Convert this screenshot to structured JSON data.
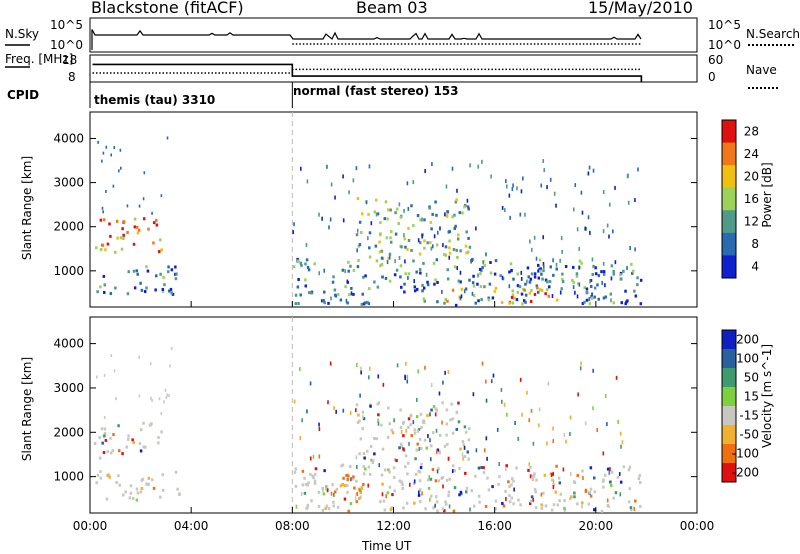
{
  "header": {
    "station": "Blackstone (fitACF)",
    "beam": "Beam 03",
    "date": "15/May/2010"
  },
  "chart_data": [
    {
      "type": "line",
      "name": "nsky-nsearch-panel",
      "labels_left": [
        "N.Sky"
      ],
      "labels_right": [
        "N.Search"
      ],
      "yticks": [
        "10^5",
        "10^0"
      ],
      "series": [
        {
          "name": "N.Sky",
          "style": "solid"
        },
        {
          "name": "N.Search",
          "style": "dotted"
        }
      ]
    },
    {
      "type": "line",
      "name": "freq-nave-panel",
      "ylabel": "Freq. [MHz]",
      "y2label": "Nave",
      "yticks_left": [
        "18",
        "8"
      ],
      "yticks_right": [
        "60",
        "0"
      ],
      "series": [
        {
          "name": "Freq",
          "style": "solid",
          "x": [
            0.1,
            8.0,
            8.0,
            21.8
          ],
          "y": [
            14.5,
            14.5,
            10.2,
            10.2
          ]
        },
        {
          "name": "Nave",
          "style": "dotted",
          "x": [
            0.1,
            8.0,
            8.0,
            21.8
          ],
          "y": [
            20,
            20,
            28,
            28
          ]
        }
      ]
    },
    {
      "type": "table",
      "name": "cpid-panel",
      "label": "CPID",
      "segments": [
        {
          "text": "themis (tau) 3310",
          "start": 0,
          "end": 8
        },
        {
          "text": "normal (fast stereo) 153",
          "start": 8,
          "end": 24
        }
      ]
    },
    {
      "type": "heatmap",
      "name": "power-panel",
      "ylabel": "Slant Range [km]",
      "yticks": [
        1000,
        2000,
        3000,
        4000
      ],
      "ylim": [
        180,
        4600
      ],
      "colorbar": {
        "label": "Power [dB]",
        "ticks": [
          "4",
          "8",
          "12",
          "16",
          "20",
          "24",
          "28"
        ],
        "colors": [
          "#1020d0",
          "#2a6ab0",
          "#4f9a88",
          "#9ad25a",
          "#f0c010",
          "#f07818",
          "#e01010"
        ]
      },
      "regions": [
        {
          "t0": 0.1,
          "t1": 2.8,
          "r0": 1450,
          "r1": 2250,
          "level": 24
        },
        {
          "t0": 0.1,
          "t1": 3.5,
          "r0": 500,
          "r1": 1150,
          "level": 12
        },
        {
          "t0": 8.0,
          "t1": 21.8,
          "r0": 250,
          "r1": 1300,
          "level": 12
        },
        {
          "t0": 14.0,
          "t1": 18.5,
          "r0": 300,
          "r1": 650,
          "level": 24
        },
        {
          "t0": 10.5,
          "t1": 15.0,
          "r0": 1300,
          "r1": 2700,
          "level": 16
        }
      ]
    },
    {
      "type": "heatmap",
      "name": "velocity-panel",
      "ylabel": "Slant Range [km]",
      "xlabel": "Time UT",
      "xticks": [
        "00:00",
        "04:00",
        "08:00",
        "12:00",
        "16:00",
        "20:00",
        "00:00"
      ],
      "xlim": [
        0,
        24
      ],
      "yticks": [
        1000,
        2000,
        3000,
        4000
      ],
      "ylim": [
        180,
        4600
      ],
      "colorbar": {
        "label": "Velocity [m s^-1]",
        "ticks": [
          "200",
          "100",
          "50",
          "15",
          "-15",
          "-50",
          "-100",
          "-200"
        ],
        "colors": [
          "#1020c0",
          "#2a5fa0",
          "#3f9a70",
          "#7ed040",
          "#c8c8c0",
          "#f0b030",
          "#f07010",
          "#e01010"
        ]
      },
      "regions": [
        {
          "t0": 0.1,
          "t1": 2.8,
          "r0": 1450,
          "r1": 2250,
          "level": 0
        },
        {
          "t0": 0.1,
          "t1": 3.5,
          "r0": 500,
          "r1": 1150,
          "level": 0
        },
        {
          "t0": 8.0,
          "t1": 21.8,
          "r0": 250,
          "r1": 1300,
          "level": 0
        },
        {
          "t0": 9.5,
          "t1": 10.8,
          "r0": 400,
          "r1": 1100,
          "level": -60
        },
        {
          "t0": 10.5,
          "t1": 15.0,
          "r0": 1300,
          "r1": 2700,
          "level": 0
        }
      ]
    }
  ]
}
